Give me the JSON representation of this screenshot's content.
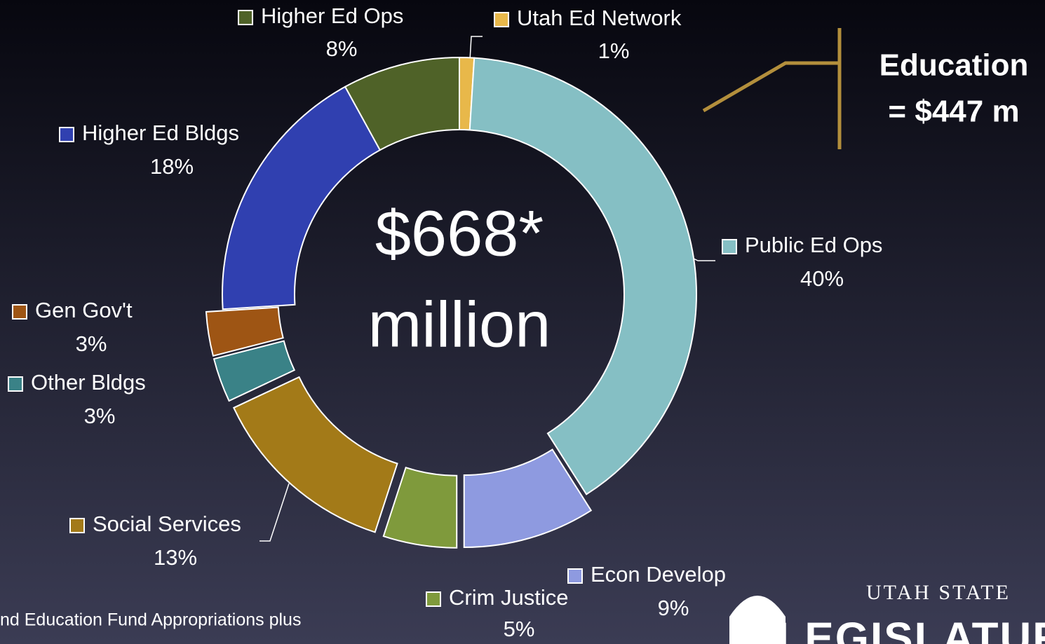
{
  "chart_data": {
    "type": "donut",
    "center_text": [
      "$668*",
      "million"
    ],
    "categories": [
      "Utah Ed Network",
      "Public Ed Ops",
      "Econ Develop",
      "Crim Justice",
      "Social Services",
      "Other Bldgs",
      "Gen Gov't",
      "Higher Ed Bldgs",
      "Higher Ed Ops"
    ],
    "values": [
      1,
      40,
      9,
      5,
      13,
      3,
      3,
      18,
      8
    ],
    "value_labels": [
      "1%",
      "40%",
      "9%",
      "5%",
      "13%",
      "3%",
      "3%",
      "18%",
      "8%"
    ],
    "colors": [
      "#e8b84a",
      "#85bfc4",
      "#8e9ae0",
      "#7f9a3c",
      "#a37a18",
      "#3a8287",
      "#9e5514",
      "#3040b0",
      "#4f6228"
    ],
    "exploded": [
      false,
      false,
      true,
      true,
      true,
      true,
      true,
      false,
      false
    ],
    "annotation": [
      "Education",
      "= $447 m"
    ],
    "footnote": "nd Education Fund Appropriations plus",
    "logo": [
      "UTAH STATE",
      "LEGISLATURE"
    ]
  }
}
